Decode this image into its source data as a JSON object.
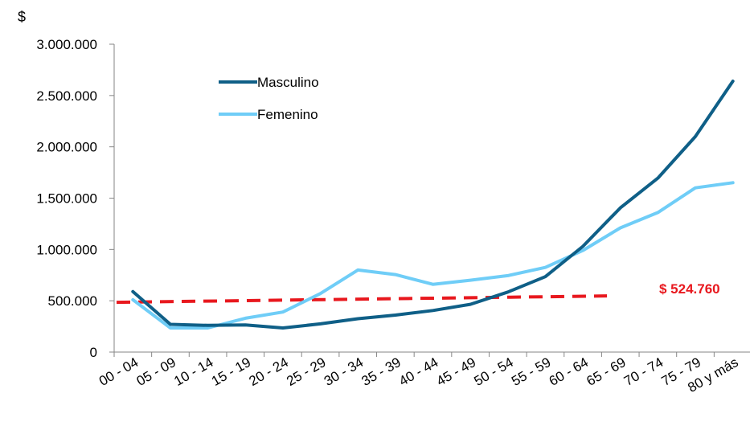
{
  "chart_data": {
    "type": "line",
    "ylabel": "$",
    "ylim": [
      0,
      3000000
    ],
    "y_ticks": [
      {
        "value": 0,
        "label": "0"
      },
      {
        "value": 500000,
        "label": "500.000"
      },
      {
        "value": 1000000,
        "label": "1.000.000"
      },
      {
        "value": 1500000,
        "label": "1.500.000"
      },
      {
        "value": 2000000,
        "label": "2.000.000"
      },
      {
        "value": 2500000,
        "label": "2.500.000"
      },
      {
        "value": 3000000,
        "label": "3.000.000"
      }
    ],
    "categories": [
      "00 - 04",
      "05 - 09",
      "10 - 14",
      "15 - 19",
      "20 - 24",
      "25 - 29",
      "30 - 34",
      "35 - 39",
      "40 - 44",
      "45 - 49",
      "50 - 54",
      "55 - 59",
      "60 - 64",
      "65 - 69",
      "70 - 74",
      "75 - 79",
      "80 y más"
    ],
    "series": [
      {
        "name": "Masculino",
        "color": "#0f5f87",
        "values": [
          590000,
          270000,
          260000,
          265000,
          235000,
          275000,
          325000,
          360000,
          405000,
          465000,
          585000,
          735000,
          1030000,
          1405000,
          1695000,
          2100000,
          2640000
        ]
      },
      {
        "name": "Femenino",
        "color": "#6fcdf7",
        "values": [
          510000,
          235000,
          235000,
          330000,
          390000,
          570000,
          800000,
          755000,
          660000,
          700000,
          745000,
          825000,
          990000,
          1210000,
          1360000,
          1600000,
          1650000
        ]
      }
    ],
    "reference_line": {
      "label": "$ 524.760",
      "color": "#e8181e",
      "start_value": 485000,
      "end_value": 547000
    },
    "legend_position": "top-left",
    "grid": false
  }
}
